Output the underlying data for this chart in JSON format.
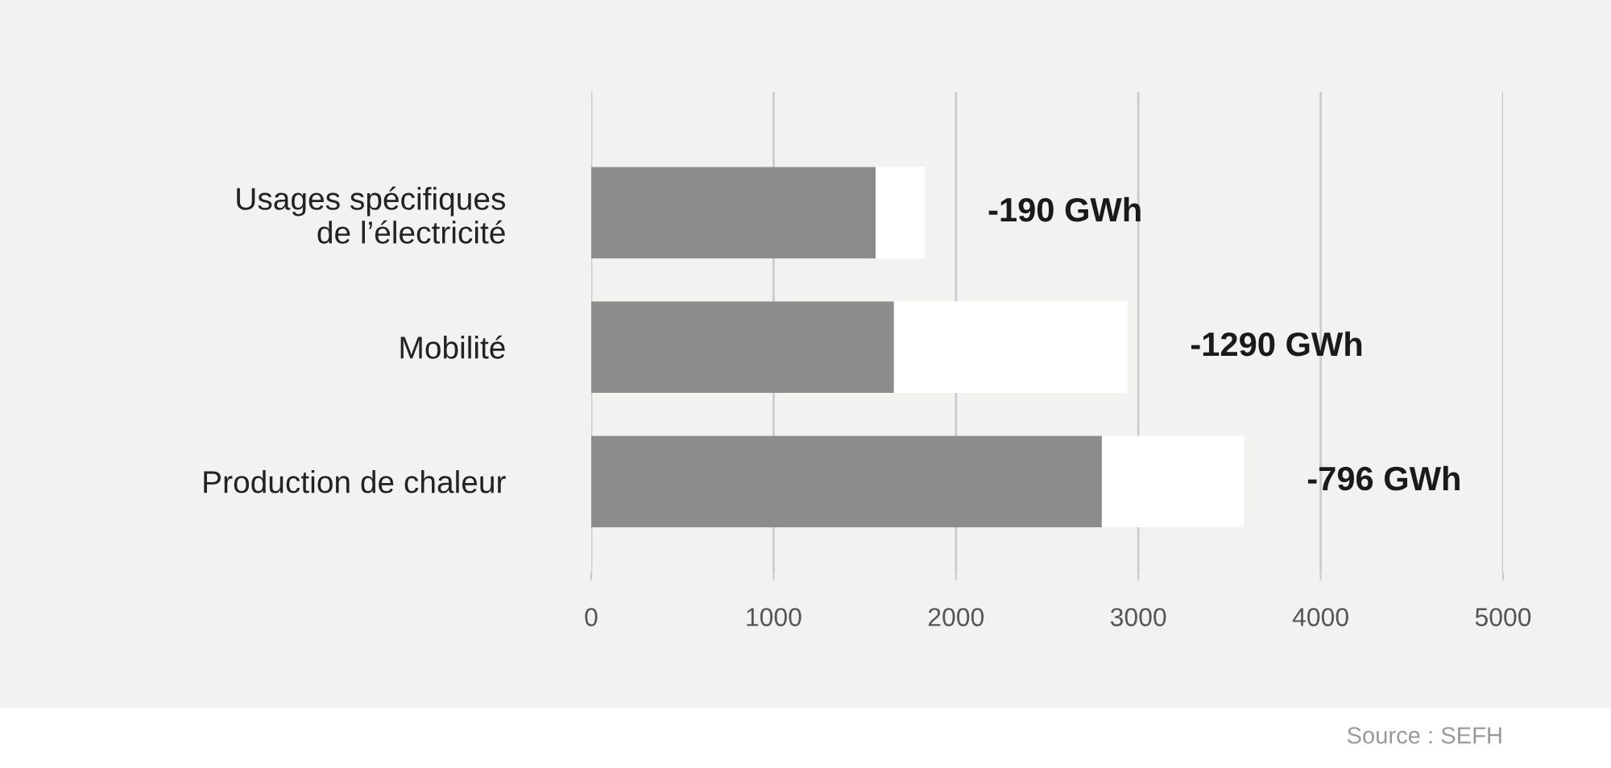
{
  "chart_data": {
    "type": "bar",
    "orientation": "horizontal",
    "stacked": true,
    "categories": [
      "Usages spécifiques\nde l’électricité",
      "Mobilité",
      "Production de chaleur"
    ],
    "series": [
      {
        "color": "#8c8c8c",
        "values": [
          1560,
          1660,
          2800
        ]
      },
      {
        "color": "#ffffff",
        "values": [
          270,
          1280,
          780
        ]
      }
    ],
    "xlim": [
      0,
      5000
    ],
    "xticks": [
      0,
      1000,
      2000,
      3000,
      4000,
      5000
    ],
    "grid": "x",
    "annotations": [
      {
        "text": "-190 GWh",
        "x": 1830,
        "y": "Usages spécifiques\nde l’électricité"
      },
      {
        "text": "-1290 GWh",
        "x": 2940,
        "y": "Mobilité"
      },
      {
        "text": "-796 GWh",
        "x": 3580,
        "y": "Production de chaleur"
      },
      "Source : SEFH"
    ]
  }
}
